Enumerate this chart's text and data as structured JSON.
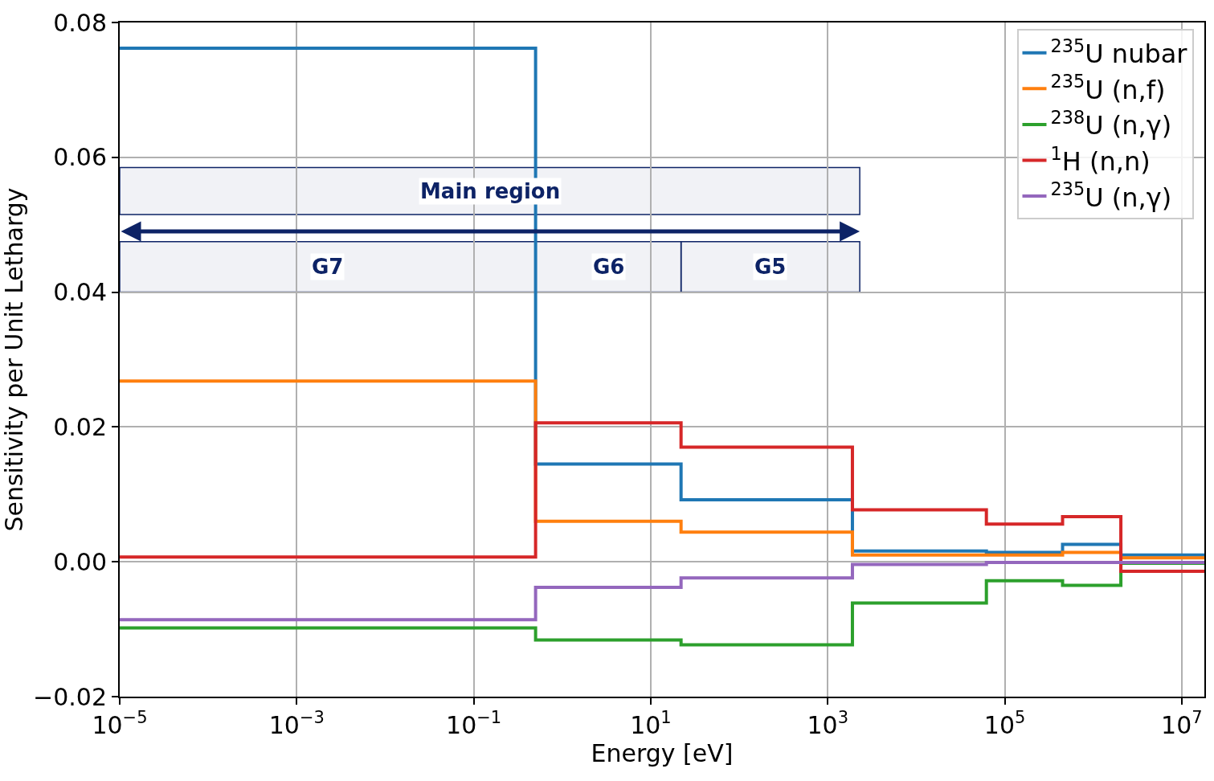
{
  "chart_data": {
    "type": "step",
    "xlabel": "Energy [eV]",
    "ylabel": "Sensitivity per Unit Lethargy",
    "log": "x",
    "grid": true,
    "legend": "top right",
    "line_style": "solid",
    "marker": "none",
    "xlim": [
      1e-05,
      18000000.0
    ],
    "ylim": [
      -0.02,
      0.08
    ],
    "xticks": [
      {
        "value": 1e-05,
        "label": "10$^{−5}$"
      },
      {
        "value": 0.001,
        "label": "10$^{−3}$"
      },
      {
        "value": 0.1,
        "label": "10$^{−1}$"
      },
      {
        "value": 10,
        "label": "10$^{1}$"
      },
      {
        "value": 1000,
        "label": "10$^{3}$"
      },
      {
        "value": 100000,
        "label": "10$^{5}$"
      },
      {
        "value": 10000000,
        "label": "10$^{7}$"
      }
    ],
    "yticks": [
      {
        "value": -0.02,
        "label": "−0.02"
      },
      {
        "value": 0,
        "label": "0.00"
      },
      {
        "value": 0.02,
        "label": "0.02"
      },
      {
        "value": 0.04,
        "label": "0.04"
      },
      {
        "value": 0.06,
        "label": "0.06"
      },
      {
        "value": 0.08,
        "label": "0.08"
      }
    ],
    "x": [
      1e-05,
      0.5,
      22,
      1900,
      62000,
      450000,
      2050000,
      18000000.0
    ],
    "series": [
      {
        "name": "$^{235}$U nubar",
        "color": "#1f77b4",
        "values": [
          0.0762,
          0.0145,
          0.0092,
          0.0016,
          0.0014,
          0.0026,
          0.001,
          0.001
        ]
      },
      {
        "name": "$^{235}$U (n,f)",
        "color": "#ff7f0e",
        "values": [
          0.0268,
          0.006,
          0.0044,
          0.001,
          0.001,
          0.0014,
          0.0006,
          0.0006
        ]
      },
      {
        "name": "$^{238}$U (n,γ)",
        "color": "#2ca02c",
        "values": [
          -0.0098,
          -0.0116,
          -0.0123,
          -0.0061,
          -0.0028,
          -0.0035,
          -0.0002,
          -0.0002
        ]
      },
      {
        "name": "$^{1}$H (n,n)",
        "color": "#d62728",
        "values": [
          0.0007,
          0.0206,
          0.017,
          0.0077,
          0.0056,
          0.0067,
          -0.0014,
          -0.0014
        ]
      },
      {
        "name": "$^{235}$U (n,γ)",
        "color": "#9467bd",
        "values": [
          -0.0086,
          -0.0038,
          -0.0024,
          -0.0004,
          -0.0001,
          -0.0001,
          -0.0001,
          -0.0001
        ]
      }
    ],
    "bands": [
      {
        "axis": "x",
        "from": 1e-05,
        "to": 2300,
        "label": "Main region",
        "color": "#0d2366"
      },
      {
        "axis": "x",
        "from": 1e-05,
        "to": 0.5,
        "label": "G7",
        "color": "#0d2366"
      },
      {
        "axis": "x",
        "from": 0.5,
        "to": 22,
        "label": "G6",
        "color": "#0d2366"
      },
      {
        "axis": "x",
        "from": 22,
        "to": 2300,
        "label": "G5",
        "color": "#0d2366"
      }
    ]
  }
}
